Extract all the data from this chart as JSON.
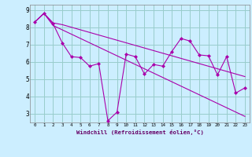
{
  "x": [
    0,
    1,
    2,
    3,
    4,
    5,
    6,
    7,
    8,
    9,
    10,
    11,
    12,
    13,
    14,
    15,
    16,
    17,
    18,
    19,
    20,
    21,
    22,
    23
  ],
  "line_main": [
    8.3,
    8.8,
    8.2,
    7.1,
    6.3,
    6.25,
    5.75,
    5.9,
    2.6,
    3.1,
    6.45,
    6.3,
    5.3,
    5.85,
    5.75,
    6.6,
    7.35,
    7.2,
    6.4,
    6.35,
    5.25,
    6.3,
    4.2,
    4.5
  ],
  "line_upper": [
    8.3,
    8.8,
    8.25,
    8.15,
    8.0,
    7.85,
    7.7,
    7.55,
    7.4,
    7.25,
    7.1,
    6.95,
    6.8,
    6.65,
    6.5,
    6.35,
    6.2,
    6.05,
    5.9,
    5.75,
    5.6,
    5.45,
    5.3,
    5.15
  ],
  "line_lower": [
    8.3,
    8.8,
    8.1,
    7.85,
    7.6,
    7.35,
    7.1,
    6.85,
    6.6,
    6.35,
    6.1,
    5.85,
    5.6,
    5.35,
    5.1,
    4.85,
    4.6,
    4.35,
    4.1,
    3.85,
    3.6,
    3.35,
    3.1,
    2.85
  ],
  "color": "#aa00aa",
  "bg_color": "#cceeff",
  "grid_color": "#99cccc",
  "ylabel_values": [
    3,
    4,
    5,
    6,
    7,
    8,
    9
  ],
  "xlabel": "Windchill (Refroidissement éolien,°C)",
  "ylim": [
    2.5,
    9.3
  ],
  "xlim": [
    -0.5,
    23.5
  ]
}
